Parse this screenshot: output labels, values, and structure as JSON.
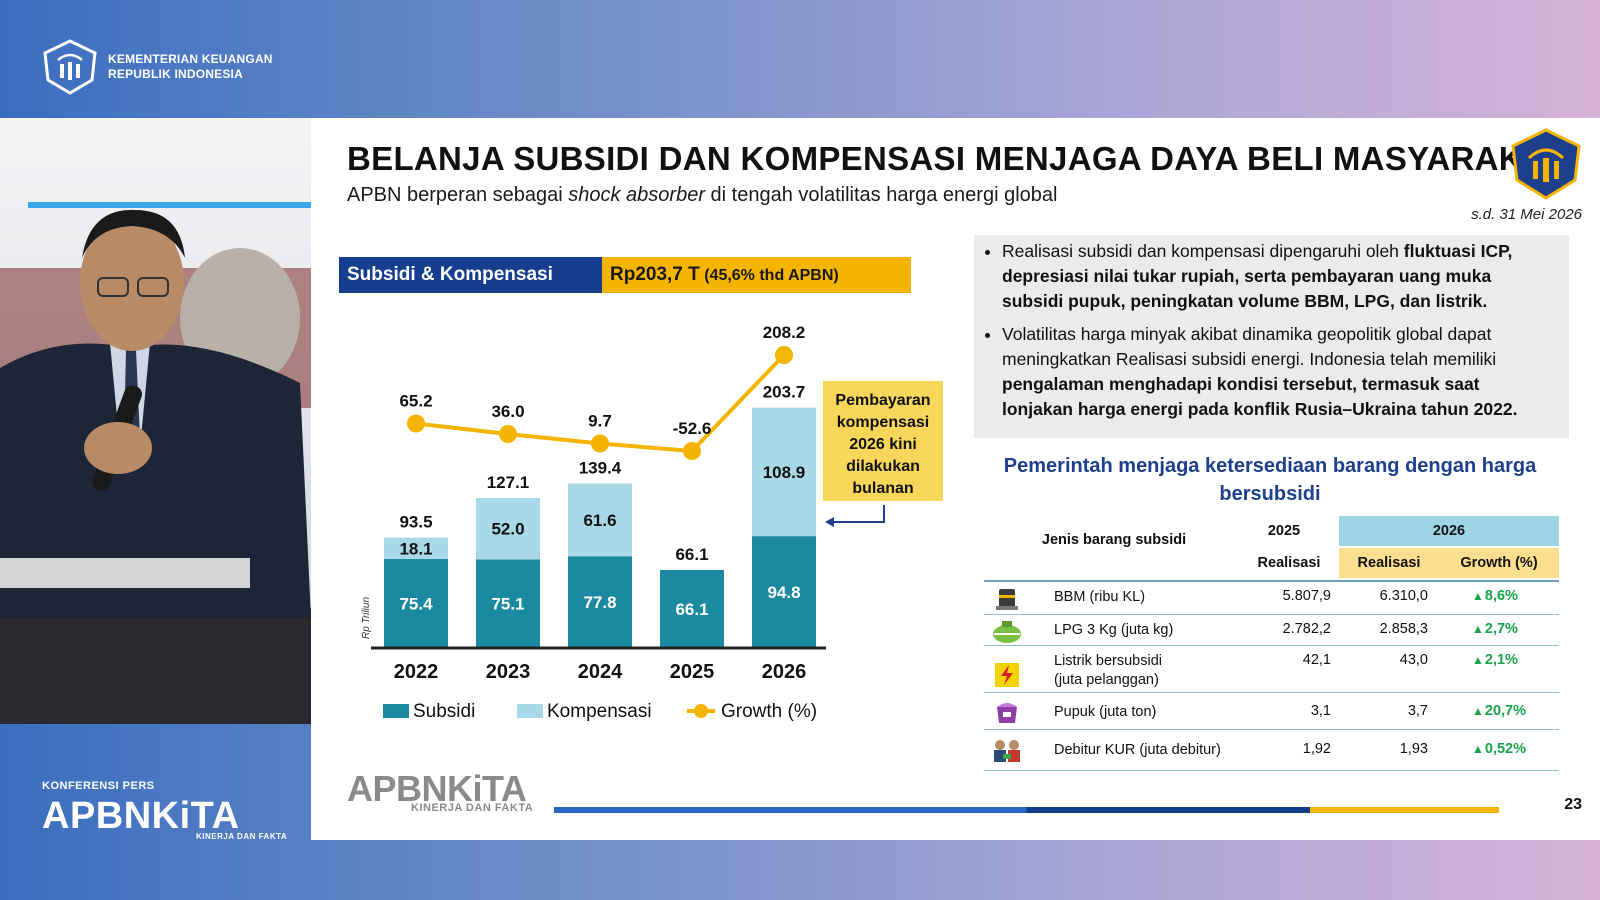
{
  "branding": {
    "org_line1": "KEMENTERIAN KEUANGAN",
    "org_line2": "REPUBLIK INDONESIA",
    "konferensi": "KONFERENSI PERS",
    "apbn": "APBNKiTA",
    "apbn_tagline": "KINERJA DAN FAKTA"
  },
  "slide": {
    "title": "BELANJA SUBSIDI DAN KOMPENSASI MENJAGA DAYA BELI MASYARAKAT",
    "subtitle_pre": "APBN berperan sebagai ",
    "subtitle_em": "shock absorber",
    "subtitle_post": " di tengah volatilitas harga energi global",
    "date": "s.d. 31 Mei 2026",
    "page_number": "23",
    "footer_logo": "APBNKiTA",
    "footer_tagline": "KINERJA DAN FAKTA"
  },
  "chart_header": {
    "label": "Subsidi & Kompensasi",
    "value_main": "Rp203,7 T",
    "value_paren": " (45,6% thd APBN)"
  },
  "chart_data": {
    "type": "bar",
    "stacked": true,
    "categories": [
      "2022",
      "2023",
      "2024",
      "2025",
      "2026"
    ],
    "ylabel": "Rp Triliun",
    "series": [
      {
        "name": "Subsidi",
        "color": "#1b8aa0",
        "values": [
          75.4,
          75.1,
          77.8,
          66.1,
          94.8
        ]
      },
      {
        "name": "Kompensasi",
        "color": "#a9d8e8",
        "values": [
          18.1,
          52.0,
          61.6,
          null,
          108.9
        ]
      }
    ],
    "totals": [
      93.5,
      127.1,
      139.4,
      66.1,
      203.7
    ],
    "growth": {
      "name": "Growth (%)",
      "color": "#f4b400",
      "values": [
        65.2,
        36.0,
        9.7,
        -52.6,
        208.2
      ]
    },
    "value_labels": {
      "subsidi": [
        "75.4",
        "75.1",
        "77.8",
        "66.1",
        "94.8"
      ],
      "kompensasi": [
        "18.1",
        "52.0",
        "61.6",
        "",
        "108.9"
      ],
      "totals": [
        "93.5",
        "127.1",
        "139.4",
        "66.1",
        "203.7"
      ],
      "growth": [
        "65.2",
        "36.0",
        "9.7",
        "-52.6",
        "208.2"
      ]
    },
    "annotation": {
      "lines": [
        "Pembayaran",
        "kompensasi",
        "2026 kini",
        "dilakukan",
        "bulanan"
      ]
    },
    "legend": [
      "Subsidi",
      "Kompensasi",
      "Growth (%)"
    ]
  },
  "notes": {
    "b1_pre": "Realisasi subsidi dan kompensasi dipengaruhi oleh ",
    "b1_bold": "fluktuasi ICP, depresiasi nilai tukar rupiah, serta pembayaran uang muka subsidi pupuk, peningkatan volume BBM, LPG, dan listrik.",
    "b2_pre": "Volatilitas harga minyak akibat dinamika geopolitik global dapat meningkatkan Realisasi subsidi energi. Indonesia telah memiliki ",
    "b2_bold": "pengalaman menghadapi kondisi tersebut, termasuk saat lonjakan harga energi pada konflik Rusia–Ukraina tahun 2022."
  },
  "table": {
    "title": "Pemerintah menjaga ketersediaan barang dengan harga bersubsidi",
    "col_jenis": "Jenis barang subsidi",
    "year_2025": "2025",
    "year_2026": "2026",
    "col_realisasi": "Realisasi",
    "col_growth": "Growth (%)",
    "rows": [
      {
        "icon": "fuel-drum-icon",
        "name": "BBM (ribu KL)",
        "r2025": "5.807,9",
        "r2026": "6.310,0",
        "growth": "8,6%"
      },
      {
        "icon": "lpg-tank-icon",
        "name": "LPG 3 Kg  (juta kg)",
        "r2025": "2.782,2",
        "r2026": "2.858,3",
        "growth": "2,7%"
      },
      {
        "icon": "electricity-icon",
        "name": "Listrik bersubsidi\n(juta pelanggan)",
        "r2025": "42,1",
        "r2026": "43,0",
        "growth": "2,1%"
      },
      {
        "icon": "fertilizer-icon",
        "name": "Pupuk (juta ton)",
        "r2025": "3,1",
        "r2026": "3,7",
        "growth": "20,7%"
      },
      {
        "icon": "kur-debtor-icon",
        "name": "Debitur KUR (juta debitur)",
        "r2025": "1,92",
        "r2026": "1,93",
        "growth": "0,52%"
      }
    ]
  }
}
